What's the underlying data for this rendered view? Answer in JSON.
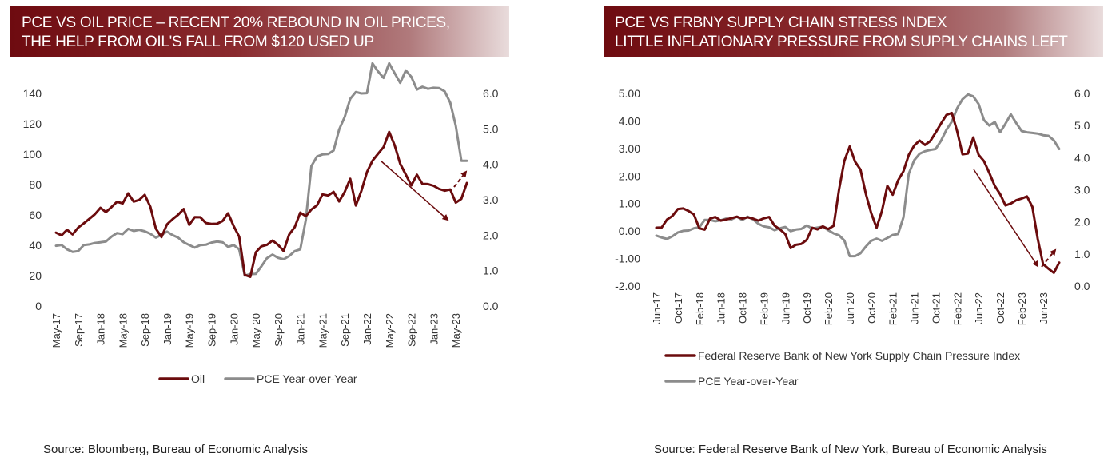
{
  "colors": {
    "oil": "#6b0b0d",
    "pce": "#8c8c8c",
    "banner": "#7a1a1e"
  },
  "left": {
    "title_line1": "PCE VS OIL PRICE – RECENT 20% REBOUND IN OIL PRICES,",
    "title_line2": "THE HELP FROM OIL'S FALL FROM $120 USED UP",
    "source": "Source: Bloomberg, Bureau of Economic Analysis"
  },
  "right": {
    "title_line1": "PCE VS FRBNY SUPPLY CHAIN STRESS INDEX",
    "title_line2": "LITTLE INFLATIONARY PRESSURE FROM SUPPLY CHAINS LEFT",
    "source": "Source: Federal Reserve Bank of New York, Bureau of Economic Analysis"
  },
  "chart_data": [
    {
      "type": "line",
      "x_start": "2017-05",
      "x_tick_labels": [
        "May-17",
        "Sep-17",
        "Jan-18",
        "May-18",
        "Sep-18",
        "Jan-19",
        "May-19",
        "Sep-19",
        "Jan-20",
        "May-20",
        "Sep-20",
        "Jan-21",
        "May-21",
        "Sep-21",
        "Jan-22",
        "May-22",
        "Sep-22",
        "Jan-23",
        "May-23"
      ],
      "y_left": {
        "min": 0,
        "max": 140,
        "ticks": [
          "0",
          "20",
          "40",
          "60",
          "80",
          "100",
          "120",
          "140"
        ]
      },
      "y_right": {
        "min": 0,
        "max": 6,
        "ticks": [
          "0.0",
          "1.0",
          "2.0",
          "3.0",
          "4.0",
          "5.0",
          "6.0"
        ]
      },
      "legend_position": "bottom",
      "series": [
        {
          "name": "Oil",
          "axis": "left",
          "values": [
            48.3,
            46.6,
            50.2,
            47.2,
            51.7,
            54.4,
            57.4,
            60.4,
            64.7,
            61.9,
            65.2,
            68.7,
            67.6,
            74.2,
            68.8,
            69.9,
            73.2,
            65.3,
            50.9,
            45.4,
            53.8,
            57.2,
            60.1,
            63.9,
            53.5,
            58.6,
            58.5,
            54.7,
            54.1,
            54.2,
            56.0,
            61.1,
            52.7,
            45.7,
            20.5,
            19.2,
            35.5,
            39.3,
            40.3,
            43.1,
            40.3,
            36.2,
            47.1,
            52.0,
            61.5,
            59.2,
            63.6,
            66.3,
            73.5,
            72.8,
            75.2,
            68.9,
            75.2,
            83.8,
            66.2,
            75.8,
            88.2,
            95.7,
            100.3,
            104.7,
            114.7,
            105.8,
            93.7,
            86.6,
            79.5,
            86.5,
            80.5,
            80.3,
            79.2,
            77.1,
            76.0,
            76.8,
            68.1,
            70.6,
            81.0
          ]
        },
        {
          "name": "PCE Year-over-Year",
          "axis": "right",
          "values": [
            1.7,
            1.72,
            1.6,
            1.53,
            1.55,
            1.72,
            1.74,
            1.78,
            1.8,
            1.82,
            1.96,
            2.06,
            2.03,
            2.18,
            2.12,
            2.15,
            2.11,
            2.04,
            1.93,
            2.01,
            2.1,
            2.0,
            1.93,
            1.8,
            1.72,
            1.65,
            1.72,
            1.73,
            1.79,
            1.82,
            1.8,
            1.67,
            1.72,
            1.6,
            0.86,
            0.9,
            0.91,
            1.12,
            1.35,
            1.45,
            1.36,
            1.32,
            1.41,
            1.55,
            1.6,
            2.44,
            3.95,
            4.22,
            4.28,
            4.29,
            4.39,
            4.98,
            5.34,
            5.85,
            6.04,
            6.0,
            6.01,
            6.85,
            6.62,
            6.44,
            6.85,
            6.57,
            6.3,
            6.65,
            6.47,
            6.11,
            6.19,
            6.13,
            6.16,
            6.15,
            6.06,
            5.74,
            5.09,
            4.1,
            4.1
          ]
        }
      ]
    },
    {
      "type": "line",
      "x_start": "2017-06",
      "x_tick_labels": [
        "Jun-17",
        "Oct-17",
        "Feb-18",
        "Jun-18",
        "Oct-18",
        "Feb-19",
        "Jun-19",
        "Oct-19",
        "Feb-20",
        "Jun-20",
        "Oct-20",
        "Feb-21",
        "Jun-21",
        "Oct-21",
        "Feb-22",
        "Jun-22",
        "Oct-22",
        "Feb-23",
        "Jun-23"
      ],
      "y_left": {
        "min": -2,
        "max": 5,
        "ticks": [
          "-2.00",
          "-1.00",
          "0.00",
          "1.00",
          "2.00",
          "3.00",
          "4.00",
          "5.00"
        ]
      },
      "y_right": {
        "min": 0,
        "max": 6,
        "ticks": [
          "0.0",
          "1.0",
          "2.0",
          "3.0",
          "4.0",
          "5.0",
          "6.0"
        ]
      },
      "legend_position": "bottom",
      "series": [
        {
          "name": "Federal Reserve Bank of New York Supply Chain Pressure Index",
          "axis": "left",
          "values": [
            0.12,
            0.13,
            0.42,
            0.55,
            0.8,
            0.82,
            0.73,
            0.6,
            0.1,
            0.05,
            0.45,
            0.51,
            0.38,
            0.42,
            0.47,
            0.52,
            0.45,
            0.5,
            0.45,
            0.38,
            0.46,
            0.51,
            0.2,
            0.06,
            -0.11,
            -0.62,
            -0.5,
            -0.47,
            -0.32,
            0.12,
            0.06,
            0.17,
            0.07,
            0.19,
            1.5,
            2.55,
            3.07,
            2.52,
            2.23,
            1.35,
            0.65,
            0.12,
            0.73,
            1.64,
            1.32,
            1.84,
            2.17,
            2.77,
            3.11,
            3.29,
            3.13,
            3.27,
            3.58,
            3.91,
            4.22,
            4.29,
            3.63,
            2.79,
            2.82,
            3.4,
            2.77,
            2.54,
            2.11,
            1.64,
            1.34,
            0.93,
            1.0,
            1.12,
            1.18,
            1.26,
            0.88,
            -0.28,
            -1.2,
            -1.37,
            -1.52,
            -1.15
          ]
        },
        {
          "name": "PCE Year-over-Year",
          "axis": "right",
          "values": [
            1.57,
            1.51,
            1.47,
            1.55,
            1.67,
            1.72,
            1.73,
            1.8,
            1.83,
            2.06,
            2.06,
            2.02,
            2.05,
            2.1,
            2.08,
            2.16,
            2.06,
            2.16,
            2.08,
            1.94,
            1.86,
            1.83,
            1.74,
            1.8,
            1.84,
            1.71,
            1.76,
            1.78,
            1.89,
            1.79,
            1.82,
            1.85,
            1.74,
            1.64,
            1.58,
            1.42,
            0.93,
            0.93,
            1.02,
            1.23,
            1.41,
            1.48,
            1.41,
            1.5,
            1.59,
            1.62,
            2.14,
            3.5,
            3.92,
            4.12,
            4.2,
            4.24,
            4.27,
            4.53,
            4.87,
            5.12,
            5.54,
            5.82,
            5.97,
            5.91,
            5.67,
            5.17,
            5.0,
            5.11,
            4.79,
            5.06,
            5.35,
            5.08,
            4.83,
            4.79,
            4.77,
            4.75,
            4.7,
            4.68,
            4.54,
            4.27
          ]
        }
      ]
    }
  ]
}
